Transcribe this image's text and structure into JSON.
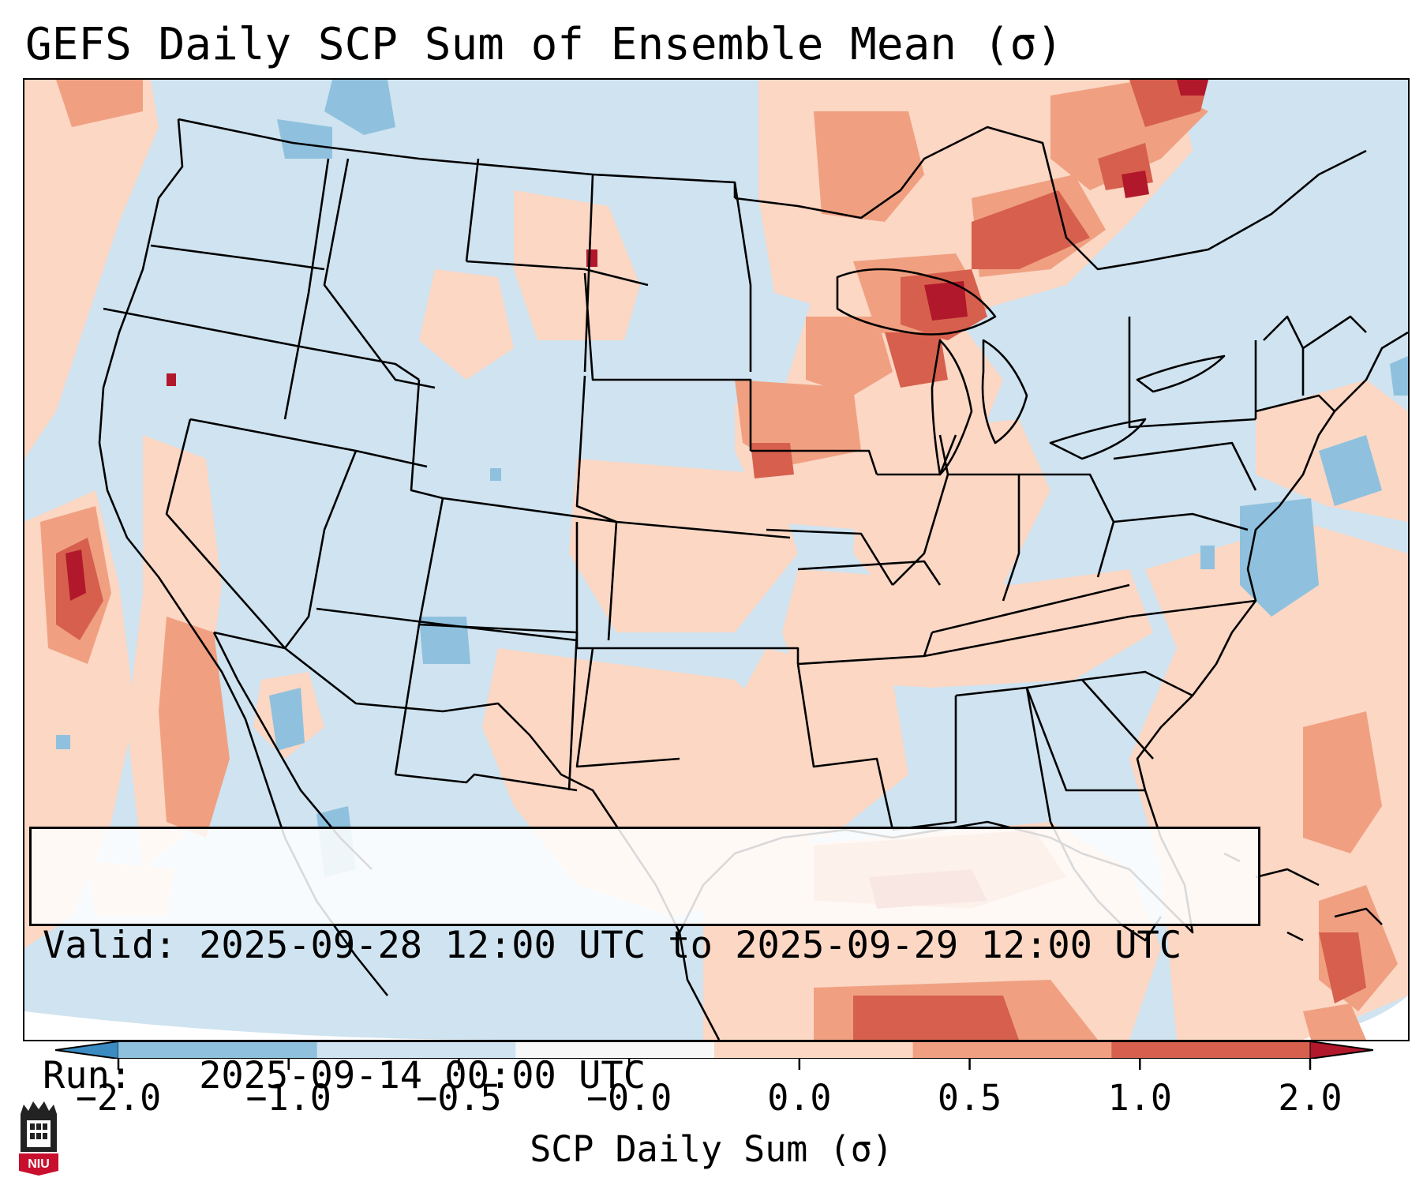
{
  "title": "GEFS Daily SCP Sum of Ensemble Mean (σ)",
  "info": {
    "valid_label": "Valid:",
    "valid_value": "2025-09-28 12:00 UTC to 2025-09-29 12:00 UTC",
    "run_label": "Run:",
    "run_value": "2025-09-14 00:00 UTC"
  },
  "colorbar": {
    "label": "SCP Daily Sum (σ)",
    "ticks": [
      "−2.0",
      "−1.0",
      "−0.5",
      "−0.0",
      "0.0",
      "0.5",
      "1.0",
      "2.0"
    ],
    "colors": [
      "#3b8bc2",
      "#8fc1de",
      "#cfe3f0",
      "#f7f7f7",
      "#fbd7c4",
      "#f0a081",
      "#d6604d",
      "#b2182b"
    ]
  },
  "logo": {
    "text": "NIU",
    "color": "#c8102e"
  },
  "map": {
    "background_color": "#cfe3f0",
    "ocean_fade_color": "#ffffff"
  }
}
